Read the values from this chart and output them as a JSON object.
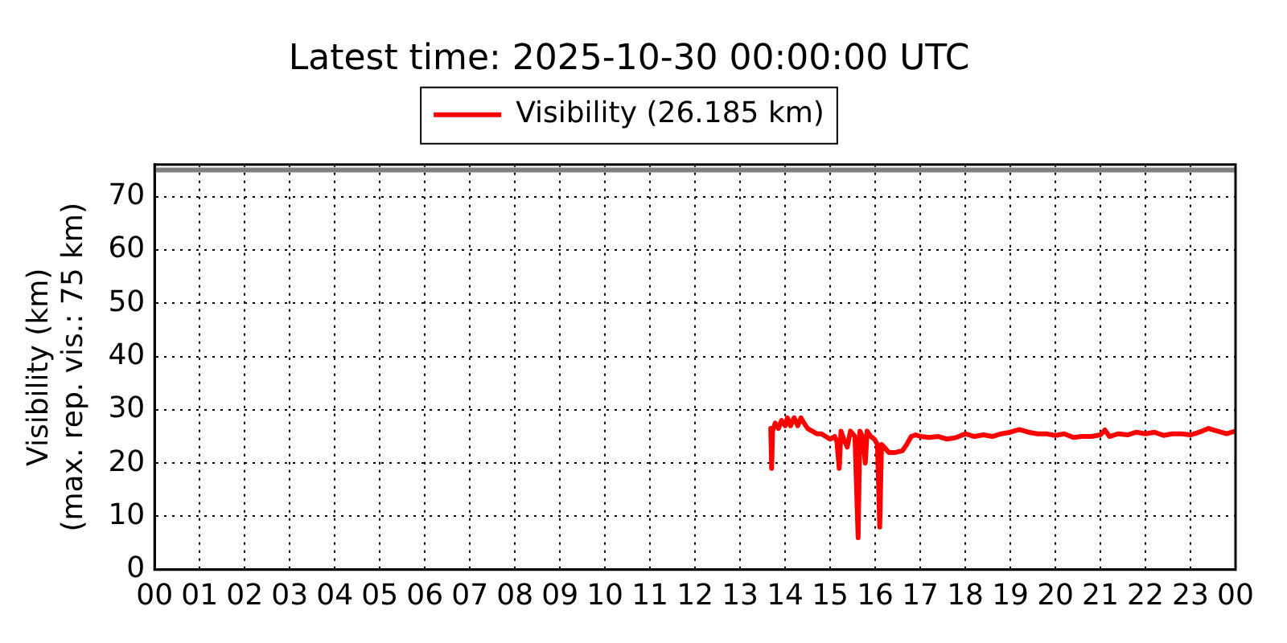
{
  "chart_data": {
    "type": "line",
    "title": "Latest time: 2025-10-30 00:00:00 UTC",
    "ylabel": "Visibility (km)\n(max. rep. vis.: 75 km)",
    "x": [
      13.68,
      13.7,
      13.72,
      13.78,
      13.85,
      13.92,
      14.0,
      14.05,
      14.12,
      14.2,
      14.28,
      14.35,
      14.42,
      14.5,
      14.6,
      14.7,
      14.8,
      14.9,
      15.0,
      15.1,
      15.15,
      15.2,
      15.24,
      15.3,
      15.38,
      15.45,
      15.55,
      15.62,
      15.66,
      15.72,
      15.78,
      15.82,
      15.9,
      15.98,
      16.05,
      16.1,
      16.14,
      16.2,
      16.3,
      16.45,
      16.6,
      16.7,
      16.8,
      16.9,
      17.0,
      17.2,
      17.4,
      17.6,
      17.8,
      18.0,
      18.2,
      18.4,
      18.6,
      18.8,
      19.0,
      19.2,
      19.4,
      19.6,
      19.8,
      20.0,
      20.2,
      20.4,
      20.6,
      20.8,
      21.0,
      21.1,
      21.2,
      21.4,
      21.6,
      21.8,
      22.0,
      22.2,
      22.4,
      22.6,
      22.8,
      23.0,
      23.2,
      23.4,
      23.6,
      23.8,
      24.0
    ],
    "series": [
      {
        "name": "Visibility (26.185 km)",
        "color": "#ff0000",
        "values": [
          26.5,
          19,
          26,
          27.5,
          26.5,
          28,
          27,
          28.5,
          27,
          28.5,
          27,
          28.5,
          27.5,
          26.5,
          26,
          25.5,
          25.5,
          25,
          24.5,
          25,
          24,
          19,
          26,
          24.5,
          23,
          26,
          25,
          6,
          26,
          25,
          20,
          26,
          25,
          24.5,
          23.5,
          8,
          23.5,
          23,
          22,
          22,
          22.3,
          23.5,
          25,
          25.3,
          25,
          24.8,
          25,
          24.5,
          24.8,
          25.5,
          25,
          25.3,
          25,
          25.5,
          25.8,
          26.3,
          25.8,
          25.5,
          25.5,
          25.2,
          25.5,
          24.8,
          25,
          25,
          25.3,
          26.2,
          25,
          25.5,
          25.3,
          25.8,
          25.5,
          25.8,
          25.2,
          25.5,
          25.5,
          25.3,
          25.8,
          26.5,
          26,
          25.5,
          26
        ]
      }
    ],
    "xlim": [
      0,
      24
    ],
    "xticks": [
      {
        "value": 0,
        "label": "00"
      },
      {
        "value": 1,
        "label": "01"
      },
      {
        "value": 2,
        "label": "02"
      },
      {
        "value": 3,
        "label": "03"
      },
      {
        "value": 4,
        "label": "04"
      },
      {
        "value": 5,
        "label": "05"
      },
      {
        "value": 6,
        "label": "06"
      },
      {
        "value": 7,
        "label": "07"
      },
      {
        "value": 8,
        "label": "08"
      },
      {
        "value": 9,
        "label": "09"
      },
      10,
      11,
      12,
      13,
      14,
      15,
      16,
      17,
      18,
      19,
      20,
      21,
      22,
      23,
      {
        "value": 24,
        "label": "00"
      }
    ],
    "ylim": [
      0,
      76
    ],
    "yticks": [
      0,
      10,
      20,
      30,
      40,
      50,
      60,
      70
    ],
    "grid": true,
    "legend": "top",
    "marker": "none",
    "line_style": "solid",
    "ref_lines": [
      {
        "axis": "y",
        "value": 75,
        "color": "#808080"
      }
    ]
  }
}
